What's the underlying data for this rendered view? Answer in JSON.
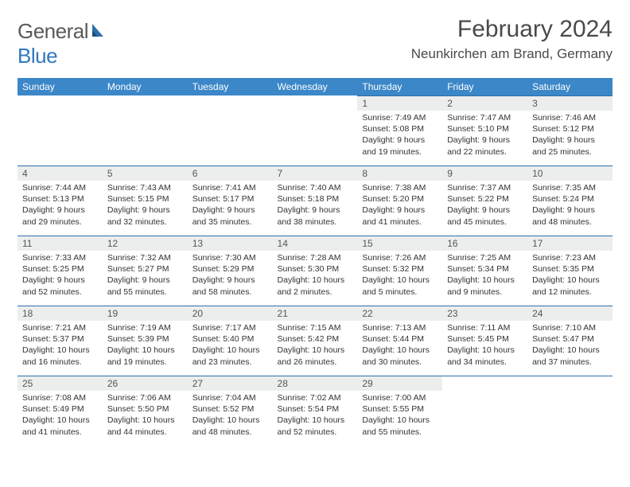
{
  "brand": {
    "word1": "General",
    "word2": "Blue"
  },
  "title": "February 2024",
  "location": "Neunkirchen am Brand, Germany",
  "colors": {
    "header_bg": "#3b87c8",
    "header_text": "#ffffff",
    "daynum_bg": "#eceeee",
    "rule": "#2f6fa8",
    "text": "#333333",
    "brand_gray": "#5a5a5a",
    "brand_blue": "#2f78bd"
  },
  "weekdays": [
    "Sunday",
    "Monday",
    "Tuesday",
    "Wednesday",
    "Thursday",
    "Friday",
    "Saturday"
  ],
  "weeks": [
    [
      {
        "n": "",
        "lines": []
      },
      {
        "n": "",
        "lines": []
      },
      {
        "n": "",
        "lines": []
      },
      {
        "n": "",
        "lines": []
      },
      {
        "n": "1",
        "lines": [
          "Sunrise: 7:49 AM",
          "Sunset: 5:08 PM",
          "Daylight: 9 hours and 19 minutes."
        ]
      },
      {
        "n": "2",
        "lines": [
          "Sunrise: 7:47 AM",
          "Sunset: 5:10 PM",
          "Daylight: 9 hours and 22 minutes."
        ]
      },
      {
        "n": "3",
        "lines": [
          "Sunrise: 7:46 AM",
          "Sunset: 5:12 PM",
          "Daylight: 9 hours and 25 minutes."
        ]
      }
    ],
    [
      {
        "n": "4",
        "lines": [
          "Sunrise: 7:44 AM",
          "Sunset: 5:13 PM",
          "Daylight: 9 hours and 29 minutes."
        ]
      },
      {
        "n": "5",
        "lines": [
          "Sunrise: 7:43 AM",
          "Sunset: 5:15 PM",
          "Daylight: 9 hours and 32 minutes."
        ]
      },
      {
        "n": "6",
        "lines": [
          "Sunrise: 7:41 AM",
          "Sunset: 5:17 PM",
          "Daylight: 9 hours and 35 minutes."
        ]
      },
      {
        "n": "7",
        "lines": [
          "Sunrise: 7:40 AM",
          "Sunset: 5:18 PM",
          "Daylight: 9 hours and 38 minutes."
        ]
      },
      {
        "n": "8",
        "lines": [
          "Sunrise: 7:38 AM",
          "Sunset: 5:20 PM",
          "Daylight: 9 hours and 41 minutes."
        ]
      },
      {
        "n": "9",
        "lines": [
          "Sunrise: 7:37 AM",
          "Sunset: 5:22 PM",
          "Daylight: 9 hours and 45 minutes."
        ]
      },
      {
        "n": "10",
        "lines": [
          "Sunrise: 7:35 AM",
          "Sunset: 5:24 PM",
          "Daylight: 9 hours and 48 minutes."
        ]
      }
    ],
    [
      {
        "n": "11",
        "lines": [
          "Sunrise: 7:33 AM",
          "Sunset: 5:25 PM",
          "Daylight: 9 hours and 52 minutes."
        ]
      },
      {
        "n": "12",
        "lines": [
          "Sunrise: 7:32 AM",
          "Sunset: 5:27 PM",
          "Daylight: 9 hours and 55 minutes."
        ]
      },
      {
        "n": "13",
        "lines": [
          "Sunrise: 7:30 AM",
          "Sunset: 5:29 PM",
          "Daylight: 9 hours and 58 minutes."
        ]
      },
      {
        "n": "14",
        "lines": [
          "Sunrise: 7:28 AM",
          "Sunset: 5:30 PM",
          "Daylight: 10 hours and 2 minutes."
        ]
      },
      {
        "n": "15",
        "lines": [
          "Sunrise: 7:26 AM",
          "Sunset: 5:32 PM",
          "Daylight: 10 hours and 5 minutes."
        ]
      },
      {
        "n": "16",
        "lines": [
          "Sunrise: 7:25 AM",
          "Sunset: 5:34 PM",
          "Daylight: 10 hours and 9 minutes."
        ]
      },
      {
        "n": "17",
        "lines": [
          "Sunrise: 7:23 AM",
          "Sunset: 5:35 PM",
          "Daylight: 10 hours and 12 minutes."
        ]
      }
    ],
    [
      {
        "n": "18",
        "lines": [
          "Sunrise: 7:21 AM",
          "Sunset: 5:37 PM",
          "Daylight: 10 hours and 16 minutes."
        ]
      },
      {
        "n": "19",
        "lines": [
          "Sunrise: 7:19 AM",
          "Sunset: 5:39 PM",
          "Daylight: 10 hours and 19 minutes."
        ]
      },
      {
        "n": "20",
        "lines": [
          "Sunrise: 7:17 AM",
          "Sunset: 5:40 PM",
          "Daylight: 10 hours and 23 minutes."
        ]
      },
      {
        "n": "21",
        "lines": [
          "Sunrise: 7:15 AM",
          "Sunset: 5:42 PM",
          "Daylight: 10 hours and 26 minutes."
        ]
      },
      {
        "n": "22",
        "lines": [
          "Sunrise: 7:13 AM",
          "Sunset: 5:44 PM",
          "Daylight: 10 hours and 30 minutes."
        ]
      },
      {
        "n": "23",
        "lines": [
          "Sunrise: 7:11 AM",
          "Sunset: 5:45 PM",
          "Daylight: 10 hours and 34 minutes."
        ]
      },
      {
        "n": "24",
        "lines": [
          "Sunrise: 7:10 AM",
          "Sunset: 5:47 PM",
          "Daylight: 10 hours and 37 minutes."
        ]
      }
    ],
    [
      {
        "n": "25",
        "lines": [
          "Sunrise: 7:08 AM",
          "Sunset: 5:49 PM",
          "Daylight: 10 hours and 41 minutes."
        ]
      },
      {
        "n": "26",
        "lines": [
          "Sunrise: 7:06 AM",
          "Sunset: 5:50 PM",
          "Daylight: 10 hours and 44 minutes."
        ]
      },
      {
        "n": "27",
        "lines": [
          "Sunrise: 7:04 AM",
          "Sunset: 5:52 PM",
          "Daylight: 10 hours and 48 minutes."
        ]
      },
      {
        "n": "28",
        "lines": [
          "Sunrise: 7:02 AM",
          "Sunset: 5:54 PM",
          "Daylight: 10 hours and 52 minutes."
        ]
      },
      {
        "n": "29",
        "lines": [
          "Sunrise: 7:00 AM",
          "Sunset: 5:55 PM",
          "Daylight: 10 hours and 55 minutes."
        ]
      },
      {
        "n": "",
        "lines": []
      },
      {
        "n": "",
        "lines": []
      }
    ]
  ]
}
